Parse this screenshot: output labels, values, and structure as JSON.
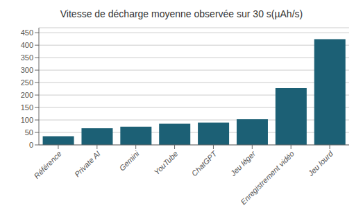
{
  "chart_data": {
    "type": "bar",
    "title": "Vitesse de décharge moyenne observée sur 30 s(µAh/s)",
    "categories": [
      "Référence",
      "Private AI",
      "Gemini",
      "YouTube",
      "ChatGPT",
      "Jeu léger",
      "Enregistrement vidéo",
      "Jeu lourd"
    ],
    "values": [
      35,
      67,
      73,
      85,
      90,
      103,
      228,
      424
    ],
    "color": "#1c6075",
    "ylim": [
      0,
      470
    ],
    "yticks": [
      0,
      50,
      100,
      150,
      200,
      250,
      300,
      350,
      400,
      450
    ],
    "grid": true
  }
}
